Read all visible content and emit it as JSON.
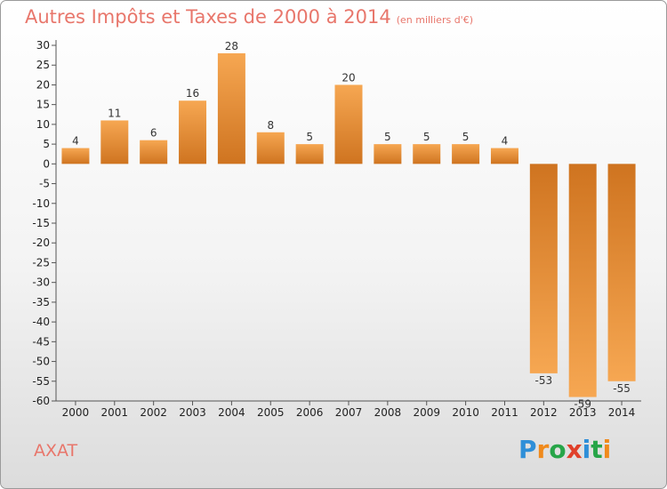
{
  "title": "Autres Impôts et Taxes de 2000 à 2014",
  "unit": "(en milliers d'€)",
  "commune": "AXAT",
  "logo": {
    "letters": [
      "P",
      "r",
      "o",
      "x",
      "i",
      "t",
      "i"
    ],
    "colors": [
      "#2f8fd8",
      "#f08a1c",
      "#27a548",
      "#e0402a",
      "#2f8fd8",
      "#27a548",
      "#f08a1c"
    ]
  },
  "colors": {
    "title": "#e8766b",
    "bar_light": "#f6a752",
    "bar_dark": "#cf7420"
  },
  "chart_data": {
    "type": "bar",
    "title": "Autres Impôts et Taxes de 2000 à 2014",
    "xlabel": "",
    "ylabel": "",
    "ylim": [
      -60,
      30
    ],
    "y_ticks": [
      30,
      25,
      20,
      15,
      10,
      5,
      0,
      -5,
      -10,
      -15,
      -20,
      -25,
      -30,
      -35,
      -40,
      -45,
      -50,
      -55,
      -60
    ],
    "grid": false,
    "categories": [
      "2000",
      "2001",
      "2002",
      "2003",
      "2004",
      "2005",
      "2006",
      "2007",
      "2008",
      "2009",
      "2010",
      "2011",
      "2012",
      "2013",
      "2014"
    ],
    "values": [
      4,
      11,
      6,
      16,
      28,
      8,
      5,
      20,
      5,
      5,
      5,
      4,
      -53,
      -59,
      -55
    ]
  }
}
